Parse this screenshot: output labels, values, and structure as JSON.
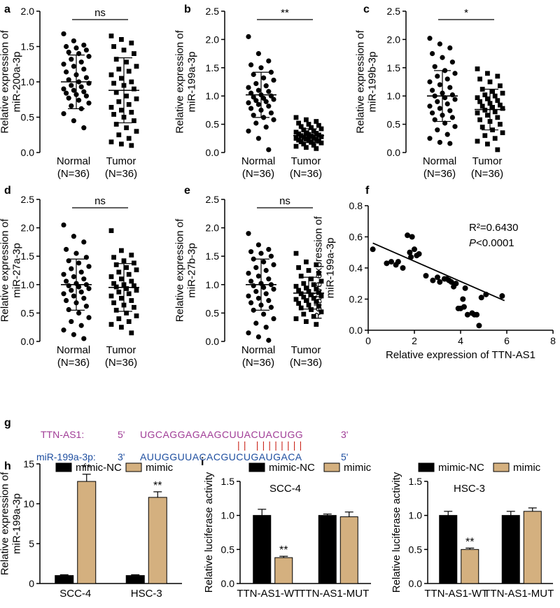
{
  "colors": {
    "black": "#000000",
    "tan": "#d4b07f",
    "purple": "#a03c96",
    "blue": "#1f4fa0",
    "red": "#cc2a20"
  },
  "chart_data": [
    {
      "panel": "a",
      "type": "scatter",
      "ylabel": [
        "Relative expression of",
        "miR-200a-3p"
      ],
      "categories": [
        "Normal",
        "Tumor"
      ],
      "category_n": [
        "(N=36)",
        "(N=36)"
      ],
      "ylim": [
        0,
        2.0
      ],
      "yticks": [
        0.0,
        0.5,
        1.0,
        1.5,
        2.0
      ],
      "means": [
        1.0,
        0.88
      ],
      "sd": [
        0.38,
        0.46
      ],
      "sig": "ns",
      "groups": [
        {
          "name": "Normal",
          "marker": "circle",
          "values": [
            1.68,
            1.58,
            1.52,
            1.5,
            1.48,
            1.45,
            1.42,
            1.4,
            1.36,
            1.32,
            1.28,
            1.25,
            1.22,
            1.18,
            1.14,
            1.1,
            1.06,
            1.03,
            1.0,
            0.98,
            0.95,
            0.93,
            0.9,
            0.88,
            0.86,
            0.84,
            0.82,
            0.8,
            0.77,
            0.74,
            0.7,
            0.66,
            0.62,
            0.55,
            0.45,
            0.35
          ]
        },
        {
          "name": "Tumor",
          "marker": "square",
          "values": [
            1.65,
            1.6,
            1.55,
            1.5,
            1.45,
            1.4,
            1.32,
            1.28,
            1.22,
            1.18,
            1.15,
            1.1,
            1.05,
            1.0,
            0.98,
            0.95,
            0.9,
            0.85,
            0.8,
            0.76,
            0.72,
            0.68,
            0.64,
            0.6,
            0.57,
            0.54,
            0.5,
            0.45,
            0.4,
            0.35,
            0.3,
            0.25,
            0.2,
            0.15,
            0.12,
            0.1
          ]
        }
      ]
    },
    {
      "panel": "b",
      "type": "scatter",
      "ylabel": [
        "Relative expression of",
        "miR-199a-3p"
      ],
      "categories": [
        "Normal",
        "Tumor"
      ],
      "category_n": [
        "(N=36)",
        "(N=36)"
      ],
      "ylim": [
        0,
        2.5
      ],
      "yticks": [
        0.0,
        0.5,
        1.0,
        1.5,
        2.0,
        2.5
      ],
      "means": [
        1.02,
        0.3
      ],
      "sd": [
        0.4,
        0.12
      ],
      "sig": "**",
      "groups": [
        {
          "name": "Normal",
          "marker": "circle",
          "values": [
            2.05,
            1.75,
            1.62,
            1.55,
            1.5,
            1.42,
            1.38,
            1.32,
            1.28,
            1.22,
            1.18,
            1.15,
            1.1,
            1.08,
            1.05,
            1.02,
            1.0,
            0.98,
            0.96,
            0.94,
            0.92,
            0.9,
            0.88,
            0.85,
            0.82,
            0.78,
            0.75,
            0.7,
            0.66,
            0.62,
            0.58,
            0.52,
            0.45,
            0.38,
            0.25,
            0.05
          ]
        },
        {
          "name": "Tumor",
          "marker": "square",
          "values": [
            0.62,
            0.58,
            0.55,
            0.52,
            0.5,
            0.48,
            0.46,
            0.44,
            0.42,
            0.4,
            0.38,
            0.36,
            0.35,
            0.34,
            0.33,
            0.32,
            0.31,
            0.3,
            0.29,
            0.28,
            0.27,
            0.26,
            0.25,
            0.24,
            0.23,
            0.22,
            0.21,
            0.2,
            0.19,
            0.18,
            0.17,
            0.15,
            0.13,
            0.11,
            0.09,
            0.07
          ]
        }
      ]
    },
    {
      "panel": "c",
      "type": "scatter",
      "ylabel": [
        "Relative expression of",
        "miR-199b-3p"
      ],
      "categories": [
        "Normal",
        "Tumor"
      ],
      "category_n": [
        "(N=36)",
        "(N=36)"
      ],
      "ylim": [
        0,
        2.5
      ],
      "yticks": [
        0.0,
        0.5,
        1.0,
        1.5,
        2.0,
        2.5
      ],
      "means": [
        1.0,
        0.76
      ],
      "sd": [
        0.45,
        0.36
      ],
      "sig": "*",
      "groups": [
        {
          "name": "Normal",
          "marker": "circle",
          "values": [
            2.02,
            1.92,
            1.85,
            1.75,
            1.68,
            1.6,
            1.52,
            1.45,
            1.4,
            1.35,
            1.3,
            1.25,
            1.2,
            1.15,
            1.1,
            1.05,
            1.02,
            1.0,
            0.97,
            0.94,
            0.9,
            0.86,
            0.82,
            0.78,
            0.74,
            0.7,
            0.66,
            0.62,
            0.58,
            0.52,
            0.46,
            0.4,
            0.32,
            0.25,
            0.18,
            0.16
          ]
        },
        {
          "name": "Tumor",
          "marker": "square",
          "values": [
            1.48,
            1.4,
            1.35,
            1.3,
            1.25,
            1.18,
            1.12,
            1.08,
            1.05,
            1.02,
            1.0,
            0.97,
            0.95,
            0.92,
            0.9,
            0.87,
            0.84,
            0.82,
            0.8,
            0.78,
            0.75,
            0.72,
            0.7,
            0.66,
            0.62,
            0.58,
            0.55,
            0.5,
            0.45,
            0.4,
            0.35,
            0.3,
            0.25,
            0.2,
            0.15,
            0.05
          ]
        }
      ]
    },
    {
      "panel": "d",
      "type": "scatter",
      "ylabel": [
        "Relative expression of",
        "miR-27a-3p"
      ],
      "categories": [
        "Normal",
        "Tumor"
      ],
      "category_n": [
        "(N=36)",
        "(N=36)"
      ],
      "ylim": [
        0,
        2.5
      ],
      "yticks": [
        0.0,
        0.5,
        1.0,
        1.5,
        2.0,
        2.5
      ],
      "means": [
        1.0,
        0.95
      ],
      "sd": [
        0.45,
        0.42
      ],
      "sig": "ns",
      "groups": [
        {
          "name": "Normal",
          "marker": "circle",
          "values": [
            2.05,
            1.85,
            1.75,
            1.62,
            1.55,
            1.48,
            1.42,
            1.38,
            1.32,
            1.28,
            1.22,
            1.18,
            1.14,
            1.1,
            1.06,
            1.02,
            1.0,
            0.98,
            0.96,
            0.93,
            0.9,
            0.87,
            0.84,
            0.8,
            0.76,
            0.72,
            0.68,
            0.62,
            0.56,
            0.5,
            0.42,
            0.35,
            0.28,
            0.2,
            0.12,
            0.05
          ]
        },
        {
          "name": "Tumor",
          "marker": "square",
          "values": [
            1.95,
            1.6,
            1.52,
            1.48,
            1.42,
            1.38,
            1.35,
            1.3,
            1.26,
            1.22,
            1.18,
            1.14,
            1.1,
            1.06,
            1.02,
            1.0,
            0.98,
            0.96,
            0.93,
            0.9,
            0.87,
            0.84,
            0.8,
            0.76,
            0.72,
            0.68,
            0.64,
            0.6,
            0.55,
            0.5,
            0.45,
            0.4,
            0.35,
            0.3,
            0.25,
            0.15
          ]
        }
      ]
    },
    {
      "panel": "e",
      "type": "scatter",
      "ylabel": [
        "Relative expression of",
        "miR-27b-3p"
      ],
      "categories": [
        "Normal",
        "Tumor"
      ],
      "category_n": [
        "(N=36)",
        "(N=36)"
      ],
      "ylim": [
        0,
        2.5
      ],
      "yticks": [
        0.0,
        0.5,
        1.0,
        1.5,
        2.0,
        2.5
      ],
      "means": [
        1.0,
        0.85
      ],
      "sd": [
        0.45,
        0.28
      ],
      "sig": "ns",
      "groups": [
        {
          "name": "Normal",
          "marker": "circle",
          "values": [
            1.9,
            1.7,
            1.62,
            1.58,
            1.55,
            1.5,
            1.45,
            1.4,
            1.35,
            1.3,
            1.25,
            1.2,
            1.15,
            1.1,
            1.06,
            1.02,
            1.0,
            0.98,
            0.95,
            0.92,
            0.88,
            0.84,
            0.8,
            0.76,
            0.72,
            0.68,
            0.64,
            0.6,
            0.55,
            0.48,
            0.4,
            0.32,
            0.25,
            0.15,
            0.08,
            0.02
          ]
        },
        {
          "name": "Tumor",
          "marker": "square",
          "values": [
            1.55,
            1.4,
            1.35,
            1.3,
            1.25,
            1.2,
            1.15,
            1.1,
            1.06,
            1.02,
            1.0,
            0.97,
            0.94,
            0.92,
            0.9,
            0.88,
            0.86,
            0.84,
            0.82,
            0.8,
            0.78,
            0.76,
            0.74,
            0.72,
            0.7,
            0.67,
            0.64,
            0.62,
            0.59,
            0.56,
            0.52,
            0.48,
            0.44,
            0.4,
            0.35,
            0.3
          ]
        }
      ]
    },
    {
      "panel": "f",
      "type": "scatter",
      "ylabel": [
        "Relative expression of",
        "miR-199a-3p"
      ],
      "xlabel": "Relative expression of TTN-AS1",
      "xlim": [
        0,
        8
      ],
      "xticks": [
        0,
        2,
        4,
        6,
        8
      ],
      "ylim": [
        0,
        0.8
      ],
      "yticks": [
        0.0,
        0.2,
        0.4,
        0.6,
        0.8
      ],
      "stats": {
        "r2_label": "R²=0.6430",
        "p_label": "P",
        "p_value": "<0.0001"
      },
      "fit": {
        "x": [
          0.2,
          5.9
        ],
        "y": [
          0.56,
          0.19
        ]
      },
      "points": [
        {
          "x": 0.2,
          "y": 0.52
        },
        {
          "x": 0.8,
          "y": 0.43
        },
        {
          "x": 1.0,
          "y": 0.44
        },
        {
          "x": 1.2,
          "y": 0.42
        },
        {
          "x": 1.3,
          "y": 0.44
        },
        {
          "x": 1.5,
          "y": 0.4
        },
        {
          "x": 1.7,
          "y": 0.61
        },
        {
          "x": 1.8,
          "y": 0.5
        },
        {
          "x": 1.85,
          "y": 0.47
        },
        {
          "x": 1.9,
          "y": 0.6
        },
        {
          "x": 2.0,
          "y": 0.52
        },
        {
          "x": 2.1,
          "y": 0.48
        },
        {
          "x": 2.2,
          "y": 0.49
        },
        {
          "x": 2.5,
          "y": 0.35
        },
        {
          "x": 2.8,
          "y": 0.32
        },
        {
          "x": 3.0,
          "y": 0.34
        },
        {
          "x": 3.1,
          "y": 0.31
        },
        {
          "x": 3.3,
          "y": 0.33
        },
        {
          "x": 3.4,
          "y": 0.33
        },
        {
          "x": 3.5,
          "y": 0.32
        },
        {
          "x": 3.6,
          "y": 0.31
        },
        {
          "x": 3.7,
          "y": 0.28
        },
        {
          "x": 3.8,
          "y": 0.3
        },
        {
          "x": 3.9,
          "y": 0.14
        },
        {
          "x": 4.0,
          "y": 0.14
        },
        {
          "x": 4.1,
          "y": 0.2
        },
        {
          "x": 4.15,
          "y": 0.15
        },
        {
          "x": 4.2,
          "y": 0.27
        },
        {
          "x": 4.3,
          "y": 0.1
        },
        {
          "x": 4.5,
          "y": 0.11
        },
        {
          "x": 4.6,
          "y": 0.1
        },
        {
          "x": 4.7,
          "y": 0.1
        },
        {
          "x": 4.8,
          "y": 0.03
        },
        {
          "x": 4.9,
          "y": 0.21
        },
        {
          "x": 5.1,
          "y": 0.23
        },
        {
          "x": 5.8,
          "y": 0.22
        }
      ]
    },
    {
      "panel": "h",
      "type": "bar",
      "ylabel": [
        "Relative expression of",
        "miR-199a-3p"
      ],
      "categories": [
        "SCC-4",
        "HSC-3"
      ],
      "legend": [
        "mimic-NC",
        "mimic"
      ],
      "ylim": [
        0,
        15
      ],
      "yticks": [
        0,
        5,
        10,
        15
      ],
      "series": [
        {
          "name": "mimic-NC",
          "values": [
            1.0,
            1.0
          ],
          "err": [
            0.1,
            0.1
          ]
        },
        {
          "name": "mimic",
          "values": [
            12.8,
            10.8
          ],
          "err": [
            0.9,
            0.7
          ]
        }
      ],
      "annotations": [
        "**",
        "**"
      ]
    },
    {
      "panel": "i",
      "type": "bar",
      "title": "SCC-4",
      "ylabel": [
        "Relative luciferase activity"
      ],
      "categories": [
        "TTN-AS1-WT",
        "TTN-AS1-MUT"
      ],
      "legend": [
        "mimic-NC",
        "mimic"
      ],
      "ylim": [
        0,
        1.5
      ],
      "yticks": [
        0.0,
        0.5,
        1.0,
        1.5
      ],
      "series": [
        {
          "name": "mimic-NC",
          "values": [
            1.0,
            1.0
          ],
          "err": [
            0.09,
            0.02
          ]
        },
        {
          "name": "mimic",
          "values": [
            0.38,
            0.98
          ],
          "err": [
            0.02,
            0.07
          ]
        }
      ],
      "annotations": [
        "**",
        ""
      ]
    },
    {
      "panel": "i",
      "type": "bar",
      "title": "HSC-3",
      "ylabel": [
        "Relative luciferase activity"
      ],
      "categories": [
        "TTN-AS1-WT",
        "TTN-AS1-MUT"
      ],
      "legend": [
        "mimic-NC",
        "mimic"
      ],
      "ylim": [
        0,
        1.5
      ],
      "yticks": [
        0.0,
        0.5,
        1.0,
        1.5
      ],
      "series": [
        {
          "name": "mimic-NC",
          "values": [
            1.0,
            1.0
          ],
          "err": [
            0.06,
            0.06
          ]
        },
        {
          "name": "mimic",
          "values": [
            0.5,
            1.06
          ],
          "err": [
            0.02,
            0.05
          ]
        }
      ],
      "annotations": [
        "**",
        ""
      ]
    }
  ],
  "sequence": {
    "panel": "g",
    "line1": {
      "name": "TTN-AS1:",
      "end5": "5'",
      "seq": "UGCAGGAGAAGCUUACUACUGG",
      "end3": "3'"
    },
    "line2": {
      "name": "miR-199a-3p:",
      "end5": "3'",
      "seq": "AUUGGUUACACGUCUGAUGACA",
      "end3": "5'"
    },
    "pair_marks": "||  ||||||||"
  }
}
